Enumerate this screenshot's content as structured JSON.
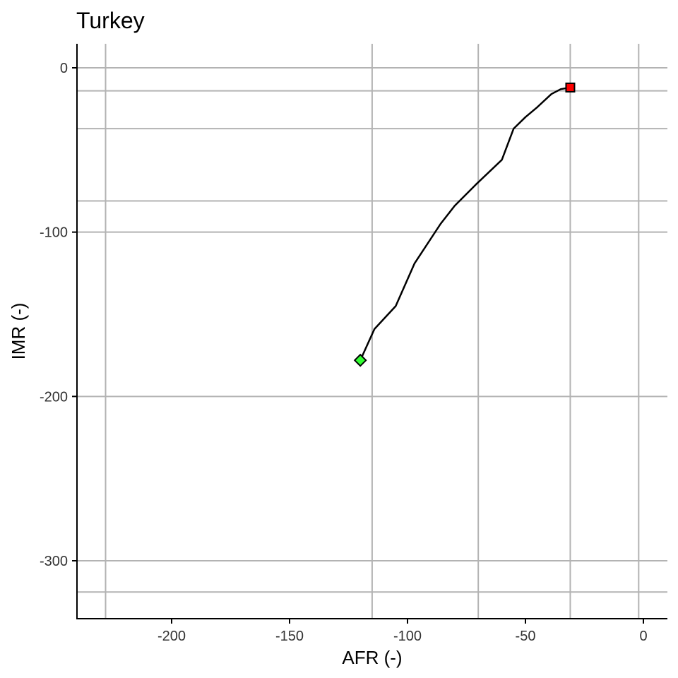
{
  "chart_data": {
    "type": "line",
    "title": "Turkey",
    "xlabel": "AFR (-)",
    "ylabel": "IMR (-)",
    "xlim": [
      -240,
      10
    ],
    "ylim": [
      -335,
      14
    ],
    "xticks": [
      -200,
      -150,
      -100,
      -50,
      0
    ],
    "yticks": [
      0,
      -100,
      -200,
      -300
    ],
    "xtick_labels": [
      "-200",
      "-150",
      "-100",
      "-50",
      "0"
    ],
    "ytick_labels": [
      "0",
      "-100",
      "-200",
      "-300"
    ],
    "grid": true,
    "vgrid": [
      -228,
      -115,
      -70,
      -31,
      -2
    ],
    "hgrid": [
      -14,
      -37,
      -81,
      -319
    ],
    "series": [
      {
        "x": [
          -120,
          -114,
          -105,
          -97,
          -86,
          -80,
          -71,
          -60,
          -55,
          -50,
          -45,
          -39,
          -35,
          -31
        ],
        "y": [
          -178,
          -159,
          -145,
          -119,
          -95,
          -84,
          -71,
          -56,
          -37,
          -30,
          -24,
          -16,
          -13,
          -12
        ],
        "color": "#000000"
      }
    ],
    "start_marker": {
      "x": -120,
      "y": -178,
      "shape": "diamond",
      "color": "#33ff33"
    },
    "end_marker": {
      "x": -31,
      "y": -12,
      "shape": "square",
      "color": "#ff0000"
    }
  }
}
